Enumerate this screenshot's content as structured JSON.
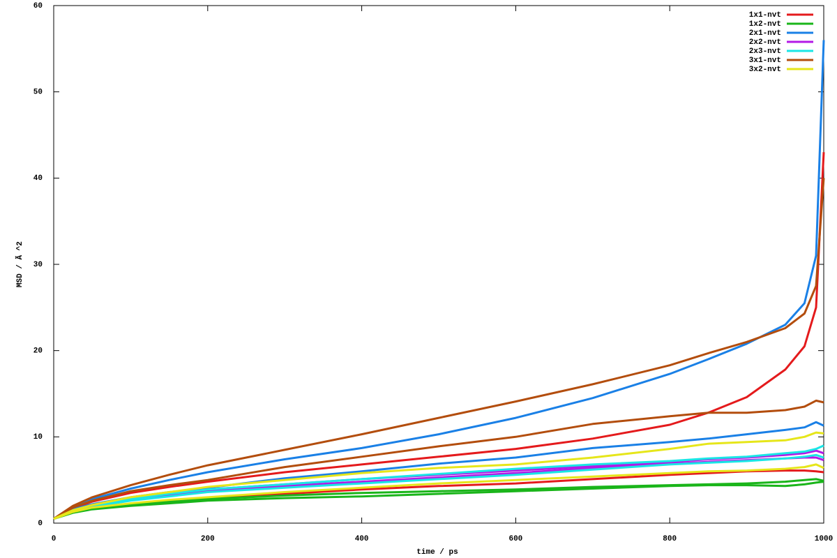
{
  "chart_data": {
    "type": "line",
    "x_label": "time / ps",
    "y_label": "MSD / Ã ^2",
    "xlim": [
      0,
      1000
    ],
    "ylim": [
      0,
      60
    ],
    "xticks": [
      0,
      200,
      400,
      600,
      800,
      1000
    ],
    "yticks": [
      0,
      10,
      20,
      30,
      40,
      50,
      60
    ],
    "legend": "top-right",
    "x": [
      0,
      25,
      50,
      100,
      150,
      200,
      300,
      400,
      500,
      600,
      700,
      800,
      850,
      900,
      950,
      975,
      990,
      1000
    ],
    "series": [
      {
        "name": "1x1-nvt",
        "color": "#e41a1c",
        "values": [
          [
            0.5,
            1.7,
            2.5,
            3.5,
            4.2,
            4.8,
            5.9,
            6.8,
            7.7,
            8.6,
            9.8,
            11.4,
            12.8,
            14.6,
            17.8,
            20.5,
            25,
            43
          ],
          [
            0.5,
            1.3,
            1.7,
            2.2,
            2.5,
            2.8,
            3.4,
            3.9,
            4.3,
            4.6,
            5.1,
            5.6,
            5.8,
            6.0,
            6.1,
            6.1,
            6.0,
            5.9
          ]
        ]
      },
      {
        "name": "1x2-nvt",
        "color": "#1ab51a",
        "values": [
          [
            0.5,
            1.3,
            1.7,
            2.2,
            2.5,
            2.8,
            3.2,
            3.5,
            3.7,
            3.9,
            4.2,
            4.4,
            4.5,
            4.6,
            4.8,
            5.0,
            5.1,
            4.9
          ],
          [
            0.5,
            1.2,
            1.6,
            2.0,
            2.3,
            2.6,
            2.9,
            3.1,
            3.4,
            3.7,
            4.0,
            4.3,
            4.4,
            4.4,
            4.3,
            4.5,
            4.7,
            4.8
          ]
        ]
      },
      {
        "name": "2x1-nvt",
        "color": "#1a80e6",
        "values": [
          [
            0.5,
            1.9,
            2.8,
            4.0,
            5.0,
            5.9,
            7.4,
            8.7,
            10.3,
            12.2,
            14.5,
            17.3,
            19.0,
            20.8,
            23.0,
            25.5,
            31,
            56
          ],
          [
            0.5,
            1.6,
            2.2,
            3.0,
            3.6,
            4.1,
            5.2,
            6.0,
            6.9,
            7.6,
            8.7,
            9.4,
            9.8,
            10.3,
            10.8,
            11.1,
            11.7,
            11.3
          ]
        ]
      },
      {
        "name": "2x2-nvt",
        "color": "#b31ae6",
        "values": [
          [
            0.5,
            1.4,
            2.0,
            2.7,
            3.2,
            3.7,
            4.3,
            4.8,
            5.3,
            5.8,
            6.4,
            6.9,
            7.1,
            7.3,
            7.5,
            7.6,
            7.6,
            7.3
          ],
          [
            0.5,
            1.4,
            2.0,
            2.8,
            3.4,
            3.9,
            4.5,
            5.1,
            5.6,
            6.1,
            6.6,
            7.1,
            7.4,
            7.6,
            7.9,
            8.1,
            8.4,
            8.1
          ]
        ]
      },
      {
        "name": "2x3-nvt",
        "color": "#1ae6e6",
        "values": [
          [
            0.5,
            1.4,
            2.0,
            2.8,
            3.4,
            3.9,
            4.5,
            5.1,
            5.7,
            6.3,
            6.8,
            7.2,
            7.5,
            7.7,
            8.1,
            8.3,
            8.6,
            9.0
          ],
          [
            0.5,
            1.4,
            1.9,
            2.6,
            3.1,
            3.6,
            4.1,
            4.6,
            5.1,
            5.6,
            6.2,
            6.8,
            7.0,
            7.2,
            7.5,
            7.7,
            7.9,
            7.6
          ]
        ]
      },
      {
        "name": "3x1-nvt",
        "color": "#b34d0d",
        "values": [
          [
            0.5,
            2.0,
            3.0,
            4.4,
            5.6,
            6.7,
            8.5,
            10.3,
            12.2,
            14.1,
            16.1,
            18.3,
            19.7,
            21.0,
            22.6,
            24.3,
            27.5,
            40
          ],
          [
            0.5,
            1.8,
            2.6,
            3.7,
            4.4,
            5.0,
            6.5,
            7.7,
            8.9,
            10.0,
            11.5,
            12.4,
            12.8,
            12.8,
            13.1,
            13.5,
            14.2,
            14.0
          ]
        ]
      },
      {
        "name": "3x2-nvt",
        "color": "#e6e61a",
        "values": [
          [
            0.5,
            1.5,
            2.1,
            3.0,
            3.6,
            4.2,
            5.0,
            5.8,
            6.4,
            6.8,
            7.6,
            8.6,
            9.2,
            9.4,
            9.6,
            10.0,
            10.5,
            10.4
          ],
          [
            0.5,
            1.3,
            1.8,
            2.3,
            2.7,
            3.0,
            3.6,
            4.1,
            4.6,
            5.0,
            5.4,
            5.8,
            6.0,
            6.1,
            6.3,
            6.5,
            6.8,
            6.4
          ]
        ]
      }
    ]
  }
}
